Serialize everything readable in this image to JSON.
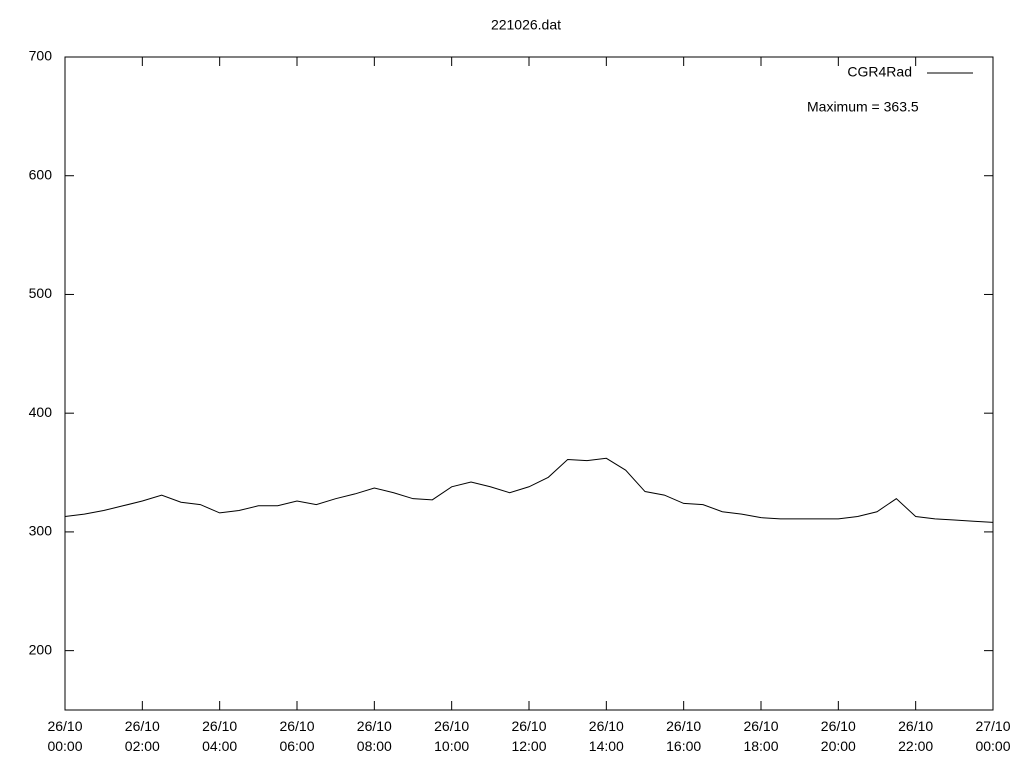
{
  "chart_data": {
    "type": "line",
    "title": "221026.dat",
    "annotation": "Maximum = 363.5",
    "legend": "top-right",
    "x": [
      "26/10 00:00",
      "26/10 00:30",
      "26/10 01:00",
      "26/10 01:30",
      "26/10 02:00",
      "26/10 02:30",
      "26/10 03:00",
      "26/10 03:30",
      "26/10 04:00",
      "26/10 04:30",
      "26/10 05:00",
      "26/10 05:30",
      "26/10 06:00",
      "26/10 06:30",
      "26/10 07:00",
      "26/10 07:30",
      "26/10 08:00",
      "26/10 08:30",
      "26/10 09:00",
      "26/10 09:30",
      "26/10 10:00",
      "26/10 10:30",
      "26/10 11:00",
      "26/10 11:30",
      "26/10 12:00",
      "26/10 12:30",
      "26/10 13:00",
      "26/10 13:30",
      "26/10 14:00",
      "26/10 14:30",
      "26/10 15:00",
      "26/10 15:30",
      "26/10 16:00",
      "26/10 16:30",
      "26/10 17:00",
      "26/10 17:30",
      "26/10 18:00",
      "26/10 18:30",
      "26/10 19:00",
      "26/10 19:30",
      "26/10 20:00",
      "26/10 20:30",
      "26/10 21:00",
      "26/10 21:30",
      "26/10 22:00",
      "26/10 22:30",
      "26/10 23:00",
      "26/10 23:30",
      "27/10 00:00"
    ],
    "series": [
      {
        "name": "CGR4Rad",
        "color": "#000000",
        "values": [
          313,
          315,
          318,
          322,
          326,
          331,
          325,
          323,
          316,
          318,
          322,
          322,
          326,
          323,
          328,
          332,
          337,
          333,
          328,
          327,
          338,
          342,
          338,
          333,
          338,
          346,
          361,
          360,
          362,
          352,
          334,
          331,
          324,
          323,
          317,
          315,
          312,
          311,
          311,
          311,
          311,
          313,
          317,
          328,
          313,
          311,
          310,
          309,
          308
        ]
      }
    ],
    "xlim": [
      "26/10 00:00",
      "27/10 00:00"
    ],
    "xticks": [
      "26/10 00:00",
      "26/10 02:00",
      "26/10 04:00",
      "26/10 06:00",
      "26/10 08:00",
      "26/10 10:00",
      "26/10 12:00",
      "26/10 14:00",
      "26/10 16:00",
      "26/10 18:00",
      "26/10 20:00",
      "26/10 22:00",
      "27/10 00:00"
    ],
    "ylim": [
      150,
      700
    ],
    "yticks": [
      200,
      300,
      400,
      500,
      600,
      700
    ]
  }
}
